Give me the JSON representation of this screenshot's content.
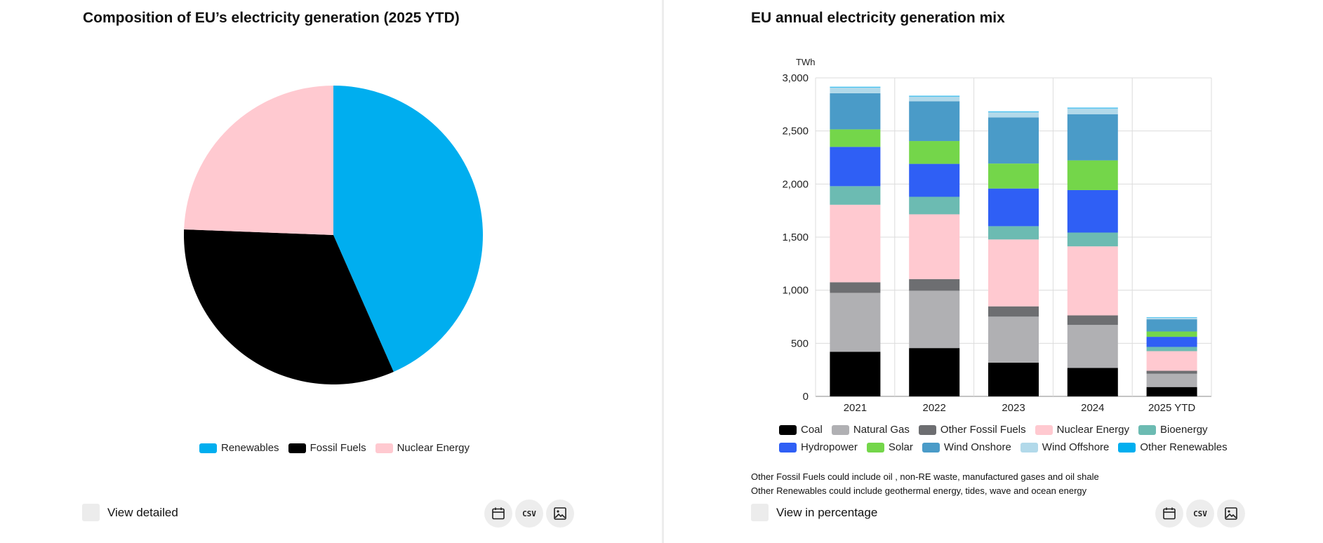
{
  "left_panel": {
    "title": "Composition of EU’s electricity generation (2025 YTD)",
    "toggle_label": "View detailed",
    "csv_label": "CSV",
    "icons": [
      "calendar-icon",
      "csv-icon",
      "image-icon"
    ]
  },
  "right_panel": {
    "title": "EU annual electricity generation mix",
    "toggle_label": "View in percentage",
    "csv_label": "CSV",
    "notes": [
      "Other Fossil Fuels could include oil , non-RE waste, manufactured gases and oil shale",
      "Other Renewables could include geothermal energy, tides, wave and ocean energy"
    ],
    "icons": [
      "calendar-icon",
      "csv-icon",
      "image-icon"
    ]
  },
  "chart_data": [
    {
      "type": "pie",
      "title": "Composition of EU’s electricity generation (2025 YTD)",
      "labels": [
        "Renewables",
        "Fossil Fuels",
        "Nuclear Energy"
      ],
      "values": [
        43.4,
        32.2,
        24.4
      ],
      "colors": [
        "#00aeef",
        "#000000",
        "#ffc9d0"
      ],
      "legend_position": "bottom"
    },
    {
      "type": "bar",
      "stacked": true,
      "title": "EU annual electricity generation mix",
      "ylabel": "TWh",
      "ylim": [
        0,
        3000
      ],
      "yticks": [
        0,
        500,
        1000,
        1500,
        2000,
        2500,
        3000
      ],
      "ytick_labels": [
        "0",
        "500",
        "1,000",
        "1,500",
        "2,000",
        "2,500",
        "3,000"
      ],
      "categories": [
        "2021",
        "2022",
        "2023",
        "2024",
        "2025 YTD"
      ],
      "grid": true,
      "legend_position": "bottom",
      "series": [
        {
          "name": "Coal",
          "color": "#000000",
          "values": [
            420,
            455,
            318,
            268,
            88
          ]
        },
        {
          "name": "Natural Gas",
          "color": "#b0b0b3",
          "values": [
            555,
            540,
            433,
            405,
            125
          ]
        },
        {
          "name": "Other Fossil Fuels",
          "color": "#6d6e71",
          "values": [
            100,
            110,
            97,
            90,
            28
          ]
        },
        {
          "name": "Nuclear Energy",
          "color": "#ffc9d0",
          "values": [
            730,
            610,
            630,
            650,
            185
          ]
        },
        {
          "name": "Bioenergy",
          "color": "#6cbbb2",
          "values": [
            175,
            165,
            125,
            130,
            40
          ]
        },
        {
          "name": "Hydropower",
          "color": "#2f5ff5",
          "values": [
            370,
            310,
            355,
            400,
            95
          ]
        },
        {
          "name": "Solar",
          "color": "#74d64a",
          "values": [
            165,
            215,
            235,
            280,
            50
          ]
        },
        {
          "name": "Wind Onshore",
          "color": "#4a9bc8",
          "values": [
            340,
            375,
            435,
            435,
            115
          ]
        },
        {
          "name": "Wind Offshore",
          "color": "#b2d9ea",
          "values": [
            55,
            45,
            50,
            55,
            15
          ]
        },
        {
          "name": "Other Renewables",
          "color": "#00aeef",
          "values": [
            6,
            6,
            6,
            6,
            4
          ]
        }
      ]
    }
  ]
}
